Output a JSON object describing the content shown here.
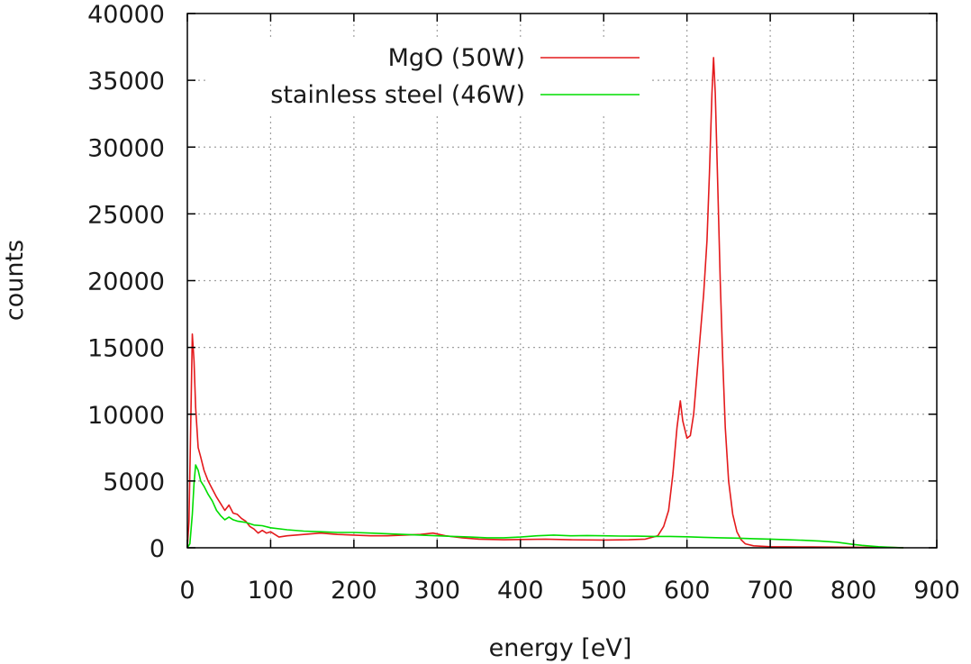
{
  "chart_data": {
    "type": "line",
    "xlabel": "energy [eV]",
    "ylabel": "counts",
    "xlim": [
      0,
      900
    ],
    "ylim": [
      0,
      40000
    ],
    "xticks": [
      0,
      100,
      200,
      300,
      400,
      500,
      600,
      700,
      800,
      900
    ],
    "yticks": [
      0,
      5000,
      10000,
      15000,
      20000,
      25000,
      30000,
      35000,
      40000
    ],
    "grid": true,
    "legend_position": "top-right",
    "series": [
      {
        "name": "MgO (50W)",
        "color": "#e41a1c",
        "points": [
          [
            0,
            0
          ],
          [
            2,
            2000
          ],
          [
            4,
            9000
          ],
          [
            6,
            16000
          ],
          [
            8,
            14000
          ],
          [
            10,
            10500
          ],
          [
            13,
            7500
          ],
          [
            16,
            6800
          ],
          [
            20,
            5800
          ],
          [
            25,
            5000
          ],
          [
            30,
            4400
          ],
          [
            35,
            3800
          ],
          [
            40,
            3300
          ],
          [
            45,
            2800
          ],
          [
            50,
            3200
          ],
          [
            55,
            2600
          ],
          [
            60,
            2500
          ],
          [
            65,
            2200
          ],
          [
            70,
            2000
          ],
          [
            75,
            1600
          ],
          [
            80,
            1400
          ],
          [
            85,
            1100
          ],
          [
            90,
            1300
          ],
          [
            95,
            1100
          ],
          [
            100,
            1200
          ],
          [
            110,
            800
          ],
          [
            120,
            900
          ],
          [
            140,
            1000
          ],
          [
            160,
            1100
          ],
          [
            180,
            1000
          ],
          [
            200,
            950
          ],
          [
            220,
            900
          ],
          [
            240,
            900
          ],
          [
            260,
            950
          ],
          [
            280,
            1000
          ],
          [
            295,
            1100
          ],
          [
            310,
            900
          ],
          [
            330,
            750
          ],
          [
            350,
            650
          ],
          [
            380,
            600
          ],
          [
            400,
            620
          ],
          [
            430,
            650
          ],
          [
            460,
            600
          ],
          [
            500,
            580
          ],
          [
            530,
            600
          ],
          [
            550,
            650
          ],
          [
            565,
            900
          ],
          [
            572,
            1600
          ],
          [
            578,
            2800
          ],
          [
            583,
            5500
          ],
          [
            588,
            9000
          ],
          [
            592,
            11000
          ],
          [
            595,
            9500
          ],
          [
            600,
            8200
          ],
          [
            604,
            8400
          ],
          [
            608,
            10000
          ],
          [
            612,
            13000
          ],
          [
            616,
            16000
          ],
          [
            620,
            19000
          ],
          [
            624,
            23000
          ],
          [
            627,
            28000
          ],
          [
            630,
            34000
          ],
          [
            632,
            36700
          ],
          [
            634,
            34000
          ],
          [
            637,
            27000
          ],
          [
            640,
            20000
          ],
          [
            643,
            14000
          ],
          [
            646,
            9000
          ],
          [
            650,
            5000
          ],
          [
            655,
            2500
          ],
          [
            660,
            1200
          ],
          [
            665,
            600
          ],
          [
            670,
            300
          ],
          [
            680,
            150
          ],
          [
            700,
            80
          ],
          [
            750,
            60
          ],
          [
            800,
            40
          ],
          [
            850,
            20
          ],
          [
            860,
            10
          ]
        ]
      },
      {
        "name": "stainless steel (46W)",
        "color": "#00dd00",
        "points": [
          [
            0,
            0
          ],
          [
            3,
            300
          ],
          [
            6,
            2500
          ],
          [
            8,
            4800
          ],
          [
            10,
            6200
          ],
          [
            13,
            5800
          ],
          [
            16,
            5000
          ],
          [
            20,
            4600
          ],
          [
            25,
            4000
          ],
          [
            30,
            3500
          ],
          [
            35,
            2800
          ],
          [
            40,
            2400
          ],
          [
            45,
            2100
          ],
          [
            50,
            2300
          ],
          [
            55,
            2100
          ],
          [
            60,
            2000
          ],
          [
            70,
            1900
          ],
          [
            80,
            1700
          ],
          [
            90,
            1650
          ],
          [
            100,
            1500
          ],
          [
            120,
            1350
          ],
          [
            140,
            1250
          ],
          [
            160,
            1200
          ],
          [
            180,
            1150
          ],
          [
            200,
            1150
          ],
          [
            220,
            1100
          ],
          [
            240,
            1050
          ],
          [
            260,
            1000
          ],
          [
            280,
            950
          ],
          [
            300,
            900
          ],
          [
            320,
            850
          ],
          [
            340,
            800
          ],
          [
            360,
            750
          ],
          [
            380,
            750
          ],
          [
            400,
            800
          ],
          [
            420,
            900
          ],
          [
            440,
            950
          ],
          [
            460,
            900
          ],
          [
            480,
            920
          ],
          [
            500,
            900
          ],
          [
            520,
            880
          ],
          [
            540,
            870
          ],
          [
            560,
            850
          ],
          [
            580,
            850
          ],
          [
            600,
            820
          ],
          [
            620,
            780
          ],
          [
            640,
            750
          ],
          [
            660,
            720
          ],
          [
            680,
            680
          ],
          [
            700,
            650
          ],
          [
            720,
            600
          ],
          [
            740,
            560
          ],
          [
            760,
            500
          ],
          [
            780,
            420
          ],
          [
            800,
            250
          ],
          [
            810,
            180
          ],
          [
            830,
            80
          ],
          [
            850,
            20
          ],
          [
            860,
            0
          ]
        ]
      }
    ]
  }
}
